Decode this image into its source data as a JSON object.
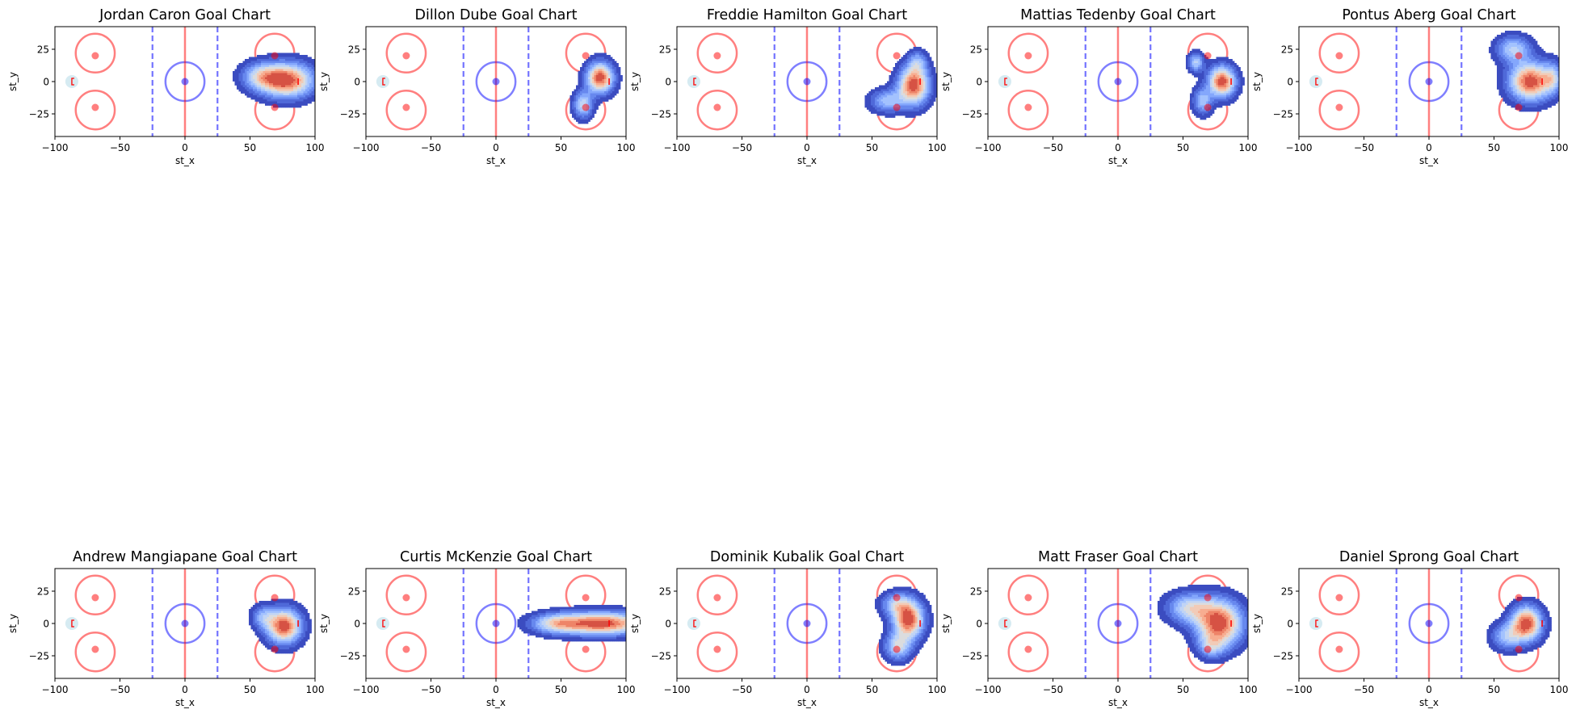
{
  "colors": {
    "rink_red": "#ff0000",
    "rink_blue": "#0000ff",
    "crease_fill": "#add8e6",
    "frame": "#000000",
    "density_palette": [
      "#3b4cc0",
      "#4f69d9",
      "#6788ee",
      "#84a7fc",
      "#a3c2fe",
      "#c0d4f5",
      "#dbdcde",
      "#f2cbb7",
      "#f7ad90",
      "#ee8468",
      "#d65244"
    ]
  },
  "chart_data": [
    {
      "type": "heatmap",
      "kind": "kde-density-shot-map",
      "title": "Jordan Caron Goal Chart",
      "xlabel": "st_x",
      "ylabel": "st_y",
      "xlim": [
        -100,
        100
      ],
      "ylim": [
        -42.5,
        42.5
      ],
      "x_ticks": [
        -100,
        -50,
        0,
        50,
        100
      ],
      "y_ticks": [
        -25,
        0,
        25
      ],
      "density_peaks": [
        {
          "x": 78,
          "y": 1,
          "sx": 14,
          "sy": 9,
          "w": 1
        },
        {
          "x": 58,
          "y": 4,
          "sx": 10,
          "sy": 7,
          "w": 0.45
        }
      ]
    },
    {
      "type": "heatmap",
      "kind": "kde-density-shot-map",
      "title": "Dillon Dube Goal Chart",
      "xlabel": "st_x",
      "ylabel": "st_y",
      "xlim": [
        -100,
        100
      ],
      "ylim": [
        -42.5,
        42.5
      ],
      "x_ticks": [
        -100,
        -50,
        0,
        50,
        100
      ],
      "y_ticks": [
        -25,
        0,
        25
      ],
      "density_peaks": [
        {
          "x": 80,
          "y": 3,
          "sx": 7,
          "sy": 8,
          "w": 1
        },
        {
          "x": 67,
          "y": -18,
          "sx": 5,
          "sy": 7,
          "w": 0.55
        }
      ]
    },
    {
      "type": "heatmap",
      "kind": "kde-density-shot-map",
      "title": "Freddie Hamilton Goal Chart",
      "xlabel": "st_x",
      "ylabel": "st_y",
      "xlim": [
        -100,
        100
      ],
      "ylim": [
        -42.5,
        42.5
      ],
      "x_ticks": [
        -100,
        -50,
        0,
        50,
        100
      ],
      "y_ticks": [
        -25,
        0,
        25
      ],
      "density_peaks": [
        {
          "x": 82,
          "y": -3,
          "sx": 8,
          "sy": 10,
          "w": 1
        },
        {
          "x": 62,
          "y": -15,
          "sx": 9,
          "sy": 6,
          "w": 0.45
        },
        {
          "x": 85,
          "y": 15,
          "sx": 5,
          "sy": 6,
          "w": 0.35
        }
      ]
    },
    {
      "type": "heatmap",
      "kind": "kde-density-shot-map",
      "title": "Mattias Tedenby Goal Chart",
      "xlabel": "st_x",
      "ylabel": "st_y",
      "xlim": [
        -100,
        100
      ],
      "ylim": [
        -42.5,
        42.5
      ],
      "x_ticks": [
        -100,
        -50,
        0,
        50,
        100
      ],
      "y_ticks": [
        -25,
        0,
        25
      ],
      "density_peaks": [
        {
          "x": 80,
          "y": 0,
          "sx": 7,
          "sy": 8,
          "w": 1
        },
        {
          "x": 60,
          "y": 15,
          "sx": 4,
          "sy": 5,
          "w": 0.5
        },
        {
          "x": 65,
          "y": -15,
          "sx": 5,
          "sy": 7,
          "w": 0.45
        }
      ]
    },
    {
      "type": "heatmap",
      "kind": "kde-density-shot-map",
      "title": "Pontus Aberg Goal Chart",
      "xlabel": "st_x",
      "ylabel": "st_y",
      "xlim": [
        -100,
        100
      ],
      "ylim": [
        -42.5,
        42.5
      ],
      "x_ticks": [
        -100,
        -50,
        0,
        50,
        100
      ],
      "y_ticks": [
        -25,
        0,
        25
      ],
      "density_peaks": [
        {
          "x": 78,
          "y": 0,
          "sx": 11,
          "sy": 10,
          "w": 1
        },
        {
          "x": 65,
          "y": 25,
          "sx": 9,
          "sy": 7,
          "w": 0.5
        },
        {
          "x": 95,
          "y": 3,
          "sx": 5,
          "sy": 8,
          "w": 0.4
        }
      ]
    },
    {
      "type": "heatmap",
      "kind": "kde-density-shot-map",
      "title": "Andrew Mangiapane Goal Chart",
      "xlabel": "st_x",
      "ylabel": "st_y",
      "xlim": [
        -100,
        100
      ],
      "ylim": [
        -42.5,
        42.5
      ],
      "x_ticks": [
        -100,
        -50,
        0,
        50,
        100
      ],
      "y_ticks": [
        -25,
        0,
        25
      ],
      "density_peaks": [
        {
          "x": 76,
          "y": -2,
          "sx": 9,
          "sy": 9,
          "w": 1
        },
        {
          "x": 60,
          "y": 5,
          "sx": 6,
          "sy": 6,
          "w": 0.35
        }
      ]
    },
    {
      "type": "heatmap",
      "kind": "kde-density-shot-map",
      "title": "Curtis McKenzie Goal Chart",
      "xlabel": "st_x",
      "ylabel": "st_y",
      "xlim": [
        -100,
        100
      ],
      "ylim": [
        -42.5,
        42.5
      ],
      "x_ticks": [
        -100,
        -50,
        0,
        50,
        100
      ],
      "y_ticks": [
        -25,
        0,
        25
      ],
      "density_peaks": [
        {
          "x": 80,
          "y": 0,
          "sx": 25,
          "sy": 6,
          "w": 1
        },
        {
          "x": 45,
          "y": 0,
          "sx": 12,
          "sy": 5,
          "w": 0.4
        }
      ]
    },
    {
      "type": "heatmap",
      "kind": "kde-density-shot-map",
      "title": "Dominik Kubalik Goal Chart",
      "xlabel": "st_x",
      "ylabel": "st_y",
      "xlim": [
        -100,
        100
      ],
      "ylim": [
        -42.5,
        42.5
      ],
      "x_ticks": [
        -100,
        -50,
        0,
        50,
        100
      ],
      "y_ticks": [
        -25,
        0,
        25
      ],
      "density_peaks": [
        {
          "x": 78,
          "y": 3,
          "sx": 8,
          "sy": 10,
          "w": 1
        },
        {
          "x": 70,
          "y": -18,
          "sx": 7,
          "sy": 7,
          "w": 0.55
        },
        {
          "x": 68,
          "y": 15,
          "sx": 8,
          "sy": 6,
          "w": 0.4
        }
      ]
    },
    {
      "type": "heatmap",
      "kind": "kde-density-shot-map",
      "title": "Matt Fraser Goal Chart",
      "xlabel": "st_x",
      "ylabel": "st_y",
      "xlim": [
        -100,
        100
      ],
      "ylim": [
        -42.5,
        42.5
      ],
      "x_ticks": [
        -100,
        -50,
        0,
        50,
        100
      ],
      "y_ticks": [
        -25,
        0,
        25
      ],
      "density_peaks": [
        {
          "x": 78,
          "y": 0,
          "sx": 12,
          "sy": 12,
          "w": 1
        },
        {
          "x": 55,
          "y": 12,
          "sx": 12,
          "sy": 8,
          "w": 0.55
        },
        {
          "x": 72,
          "y": -18,
          "sx": 7,
          "sy": 6,
          "w": 0.35
        }
      ]
    },
    {
      "type": "heatmap",
      "kind": "kde-density-shot-map",
      "title": "Daniel Sprong Goal Chart",
      "xlabel": "st_x",
      "ylabel": "st_y",
      "xlim": [
        -100,
        100
      ],
      "ylim": [
        -42.5,
        42.5
      ],
      "x_ticks": [
        -100,
        -50,
        0,
        50,
        100
      ],
      "y_ticks": [
        -25,
        0,
        25
      ],
      "density_peaks": [
        {
          "x": 75,
          "y": 0,
          "sx": 8,
          "sy": 9,
          "w": 1
        },
        {
          "x": 60,
          "y": -10,
          "sx": 8,
          "sy": 7,
          "w": 0.45
        }
      ]
    }
  ]
}
